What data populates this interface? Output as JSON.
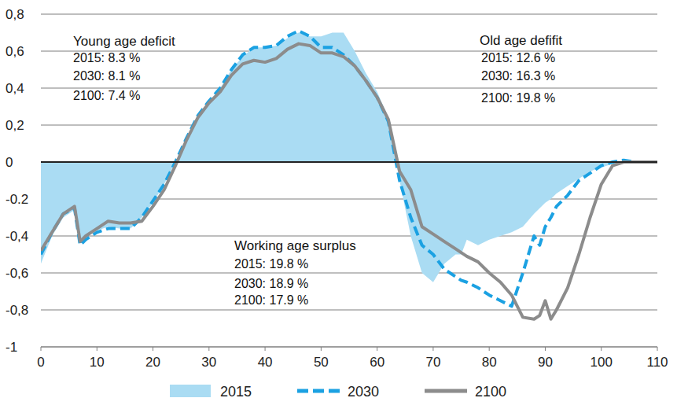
{
  "chart_data": {
    "type": "line",
    "x": [
      0,
      2,
      4,
      6,
      7,
      8,
      10,
      12,
      14,
      16,
      18,
      20,
      22,
      24,
      26,
      28,
      30,
      32,
      34,
      36,
      38,
      40,
      42,
      44,
      46,
      48,
      50,
      52,
      54,
      56,
      58,
      60,
      62,
      64,
      66,
      68,
      70,
      72,
      74,
      75,
      76,
      78,
      80,
      82,
      84,
      86,
      88,
      89,
      90,
      91,
      92,
      94,
      96,
      98,
      100,
      102,
      104,
      106,
      108,
      110
    ],
    "series": [
      {
        "name": "2015",
        "type": "area",
        "color": "#aadcf3",
        "values": [
          -0.55,
          -0.4,
          -0.3,
          -0.26,
          -0.42,
          -0.4,
          -0.37,
          -0.35,
          -0.36,
          -0.36,
          -0.3,
          -0.22,
          -0.12,
          0.0,
          0.12,
          0.24,
          0.33,
          0.4,
          0.5,
          0.57,
          0.62,
          0.62,
          0.63,
          0.67,
          0.7,
          0.68,
          0.68,
          0.7,
          0.7,
          0.6,
          0.48,
          0.38,
          0.24,
          -0.1,
          -0.4,
          -0.6,
          -0.65,
          -0.55,
          -0.5,
          -0.5,
          -0.42,
          -0.45,
          -0.42,
          -0.4,
          -0.38,
          -0.35,
          -0.28,
          -0.25,
          -0.22,
          -0.2,
          -0.17,
          -0.13,
          -0.09,
          -0.05,
          -0.03,
          -0.01,
          0,
          0,
          0,
          0
        ]
      },
      {
        "name": "2030",
        "type": "line",
        "line_style": "dashed",
        "color": "#1ba1e2",
        "values": [
          -0.5,
          -0.38,
          -0.28,
          -0.25,
          -0.45,
          -0.42,
          -0.38,
          -0.36,
          -0.36,
          -0.36,
          -0.3,
          -0.21,
          -0.12,
          0.0,
          0.13,
          0.25,
          0.33,
          0.4,
          0.5,
          0.58,
          0.62,
          0.62,
          0.63,
          0.68,
          0.71,
          0.68,
          0.62,
          0.62,
          0.58,
          0.52,
          0.44,
          0.35,
          0.22,
          -0.1,
          -0.3,
          -0.45,
          -0.5,
          -0.58,
          -0.62,
          -0.64,
          -0.65,
          -0.68,
          -0.72,
          -0.75,
          -0.78,
          -0.6,
          -0.4,
          -0.45,
          -0.35,
          -0.3,
          -0.24,
          -0.18,
          -0.1,
          -0.06,
          -0.02,
          0,
          0.01,
          0,
          0,
          0
        ]
      },
      {
        "name": "2100",
        "type": "line",
        "line_style": "solid",
        "color": "#8c8c8c",
        "values": [
          -0.48,
          -0.38,
          -0.28,
          -0.24,
          -0.43,
          -0.4,
          -0.36,
          -0.32,
          -0.33,
          -0.33,
          -0.32,
          -0.24,
          -0.15,
          -0.02,
          0.12,
          0.24,
          0.32,
          0.38,
          0.47,
          0.53,
          0.55,
          0.54,
          0.56,
          0.61,
          0.64,
          0.63,
          0.59,
          0.59,
          0.57,
          0.52,
          0.44,
          0.35,
          0.23,
          -0.05,
          -0.15,
          -0.35,
          -0.39,
          -0.43,
          -0.47,
          -0.49,
          -0.51,
          -0.54,
          -0.6,
          -0.65,
          -0.72,
          -0.84,
          -0.85,
          -0.83,
          -0.75,
          -0.85,
          -0.8,
          -0.68,
          -0.5,
          -0.3,
          -0.12,
          -0.02,
          0,
          0,
          0,
          0
        ]
      }
    ],
    "xlim": [
      0,
      110
    ],
    "xticks": [
      0,
      10,
      20,
      30,
      40,
      50,
      60,
      70,
      80,
      90,
      100,
      110
    ],
    "ylim": [
      -1,
      0.8
    ],
    "yticks": [
      {
        "value": -1,
        "label": "-1"
      },
      {
        "value": -0.8,
        "label": "-0,8"
      },
      {
        "value": -0.6,
        "label": "-0,6"
      },
      {
        "value": -0.4,
        "label": "-0,4"
      },
      {
        "value": -0.2,
        "label": "-0.2"
      },
      0,
      {
        "value": 0.2,
        "label": "0,2"
      },
      {
        "value": 0.4,
        "label": "0,4"
      },
      {
        "value": 0.6,
        "label": "0,6"
      },
      {
        "value": 0.8,
        "label": "0,8"
      }
    ],
    "grid": true,
    "legend": "bottom",
    "annotations": [
      {
        "title": "Young age deficit",
        "lines": [
          "2015: 8.3 %",
          "2030: 8.1 %",
          "2100: 7.4 %"
        ]
      },
      {
        "title": "Old age defifit",
        "lines": [
          "2015: 12.6 %",
          "2030: 16.3 %",
          "2100: 19.8 %"
        ]
      },
      {
        "title": "Working age surplus",
        "lines": [
          "2015: 19.8 %",
          "2030: 18.9 %",
          "2100: 17.9 %"
        ]
      }
    ]
  }
}
